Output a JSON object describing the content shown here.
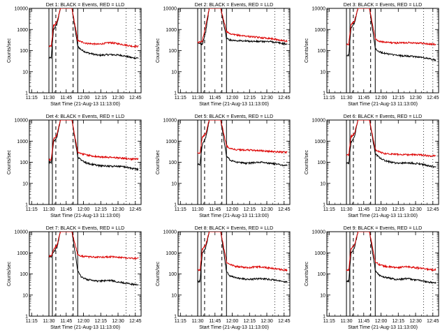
{
  "colors": {
    "events": "#000000",
    "lld": "#dd0000",
    "axes": "#000000",
    "background": "#ffffff"
  },
  "x_tick_labels": [
    "11:15",
    "11:30",
    "11:45",
    "12:00",
    "12:15",
    "12:30",
    "12:45"
  ],
  "y_tick_labels": [
    "1",
    "10",
    "100",
    "1000",
    "10000"
  ],
  "ylabel": "Counts/sec",
  "xlabel": "Start Time (21-Aug-13 11:13:00)",
  "chart_data": [
    {
      "type": "line",
      "title": "Det 1: BLACK = Events, RED = LLD",
      "x_minutes_since_start_time": [
        0,
        17,
        19,
        21,
        24,
        27,
        30,
        37,
        42,
        45,
        50,
        60,
        70,
        80,
        90,
        95
      ],
      "series": [
        {
          "name": "Events",
          "color": "#000000",
          "values": [
            null,
            45,
            45,
            1000,
            1800,
            10000,
            10000,
            10000,
            160,
            110,
            80,
            60,
            65,
            60,
            45,
            45
          ]
        },
        {
          "name": "LLD",
          "color": "#dd0000",
          "values": [
            null,
            160,
            160,
            1500,
            2200,
            10000,
            10000,
            10000,
            300,
            260,
            220,
            200,
            240,
            200,
            160,
            160
          ]
        }
      ],
      "ylim": [
        1,
        10000
      ],
      "yscale": "log",
      "solid_vertical_lines": [
        17,
        20,
        42
      ],
      "dashed_vertical_lines": [
        23,
        38
      ],
      "dotted_vertical_lines": [
        84,
        92
      ]
    },
    {
      "type": "line",
      "title": "Det 2: BLACK = Events, RED = LLD",
      "x_minutes_since_start_time": [
        0,
        17,
        19,
        21,
        24,
        27,
        30,
        37,
        42,
        45,
        50,
        60,
        70,
        80,
        90,
        95
      ],
      "series": [
        {
          "name": "Events",
          "color": "#000000",
          "values": [
            null,
            220,
            220,
            200,
            800,
            10000,
            10000,
            10000,
            380,
            320,
            300,
            280,
            270,
            270,
            220,
            200
          ]
        },
        {
          "name": "LLD",
          "color": "#dd0000",
          "values": [
            null,
            250,
            250,
            280,
            1500,
            10000,
            10000,
            10000,
            800,
            600,
            550,
            480,
            420,
            380,
            300,
            280
          ]
        }
      ],
      "ylim": [
        1,
        10000
      ],
      "yscale": "log",
      "solid_vertical_lines": [
        17,
        20,
        42
      ],
      "dashed_vertical_lines": [
        23,
        38
      ],
      "dotted_vertical_lines": [
        84,
        92
      ]
    },
    {
      "type": "line",
      "title": "Det 3: BLACK = Events, RED = LLD",
      "x_minutes_since_start_time": [
        0,
        17,
        19,
        21,
        24,
        27,
        30,
        37,
        42,
        45,
        50,
        60,
        70,
        80,
        90,
        95
      ],
      "series": [
        {
          "name": "Events",
          "color": "#000000",
          "values": [
            null,
            60,
            60,
            1200,
            2000,
            10000,
            10000,
            10000,
            130,
            90,
            75,
            60,
            55,
            50,
            40,
            35
          ]
        },
        {
          "name": "LLD",
          "color": "#dd0000",
          "values": [
            null,
            200,
            200,
            1800,
            2500,
            10000,
            10000,
            10000,
            350,
            280,
            250,
            230,
            240,
            230,
            200,
            200
          ]
        }
      ],
      "ylim": [
        1,
        10000
      ],
      "yscale": "log",
      "solid_vertical_lines": [
        17,
        20,
        42
      ],
      "dashed_vertical_lines": [
        23,
        38
      ],
      "dotted_vertical_lines": [
        84,
        92
      ]
    },
    {
      "type": "line",
      "title": "Det 4: BLACK = Events, RED = LLD",
      "x_minutes_since_start_time": [
        0,
        17,
        19,
        21,
        24,
        27,
        30,
        37,
        42,
        45,
        50,
        60,
        70,
        80,
        90,
        95
      ],
      "series": [
        {
          "name": "Events",
          "color": "#000000",
          "values": [
            null,
            100,
            100,
            900,
            1600,
            10000,
            10000,
            10000,
            180,
            130,
            90,
            70,
            65,
            65,
            50,
            45
          ]
        },
        {
          "name": "LLD",
          "color": "#dd0000",
          "values": [
            null,
            130,
            130,
            1200,
            2000,
            10000,
            10000,
            10000,
            300,
            260,
            220,
            180,
            170,
            160,
            140,
            140
          ]
        }
      ],
      "ylim": [
        1,
        10000
      ],
      "yscale": "log",
      "solid_vertical_lines": [
        17,
        20,
        42
      ],
      "dashed_vertical_lines": [
        23,
        38
      ],
      "dotted_vertical_lines": [
        84,
        92
      ]
    },
    {
      "type": "line",
      "title": "Det 5: BLACK = Events, RED = LLD",
      "x_minutes_since_start_time": [
        0,
        17,
        19,
        21,
        24,
        27,
        30,
        37,
        42,
        45,
        50,
        60,
        70,
        80,
        90,
        95
      ],
      "series": [
        {
          "name": "Events",
          "color": "#000000",
          "values": [
            null,
            80,
            80,
            700,
            1400,
            10000,
            10000,
            10000,
            200,
            130,
            100,
            90,
            100,
            90,
            75,
            70
          ]
        },
        {
          "name": "LLD",
          "color": "#dd0000",
          "values": [
            null,
            280,
            280,
            1500,
            2300,
            10000,
            10000,
            10000,
            600,
            450,
            400,
            380,
            360,
            330,
            300,
            300
          ]
        }
      ],
      "ylim": [
        1,
        10000
      ],
      "yscale": "log",
      "solid_vertical_lines": [
        17,
        20,
        42
      ],
      "dashed_vertical_lines": [
        23,
        38
      ],
      "dotted_vertical_lines": [
        84,
        92
      ]
    },
    {
      "type": "line",
      "title": "Det 6: BLACK = Events, RED = LLD",
      "x_minutes_since_start_time": [
        0,
        17,
        19,
        21,
        24,
        27,
        30,
        37,
        42,
        45,
        50,
        60,
        70,
        80,
        90,
        95
      ],
      "series": [
        {
          "name": "Events",
          "color": "#000000",
          "values": [
            null,
            90,
            90,
            900,
            1700,
            10000,
            10000,
            10000,
            250,
            180,
            120,
            90,
            95,
            85,
            65,
            60
          ]
        },
        {
          "name": "LLD",
          "color": "#dd0000",
          "values": [
            null,
            220,
            220,
            1600,
            2400,
            10000,
            10000,
            10000,
            400,
            320,
            260,
            240,
            230,
            230,
            200,
            200
          ]
        }
      ],
      "ylim": [
        1,
        10000
      ],
      "yscale": "log",
      "solid_vertical_lines": [
        17,
        20,
        42
      ],
      "dashed_vertical_lines": [
        23,
        38
      ],
      "dotted_vertical_lines": [
        84,
        92
      ]
    },
    {
      "type": "line",
      "title": "Det 7: BLACK = Events, RED = LLD",
      "x_minutes_since_start_time": [
        0,
        17,
        19,
        21,
        24,
        27,
        30,
        37,
        42,
        45,
        50,
        60,
        70,
        80,
        90,
        95
      ],
      "series": [
        {
          "name": "Events",
          "color": "#000000",
          "values": [
            null,
            650,
            650,
            1100,
            1800,
            10000,
            10000,
            10000,
            150,
            70,
            55,
            45,
            50,
            40,
            32,
            30
          ]
        },
        {
          "name": "LLD",
          "color": "#dd0000",
          "values": [
            null,
            700,
            700,
            1500,
            2300,
            10000,
            10000,
            10000,
            800,
            700,
            650,
            620,
            650,
            600,
            550,
            550
          ]
        }
      ],
      "ylim": [
        1,
        10000
      ],
      "yscale": "log",
      "solid_vertical_lines": [
        17,
        20,
        42
      ],
      "dashed_vertical_lines": [
        23,
        38
      ],
      "dotted_vertical_lines": [
        84,
        92
      ]
    },
    {
      "type": "line",
      "title": "Det 8: BLACK = Events, RED = LLD",
      "x_minutes_since_start_time": [
        0,
        17,
        19,
        21,
        24,
        27,
        30,
        37,
        42,
        45,
        50,
        60,
        70,
        80,
        90,
        95
      ],
      "series": [
        {
          "name": "Events",
          "color": "#000000",
          "values": [
            null,
            45,
            45,
            900,
            1700,
            10000,
            10000,
            10000,
            130,
            80,
            65,
            55,
            60,
            55,
            45,
            40
          ]
        },
        {
          "name": "LLD",
          "color": "#dd0000",
          "values": [
            null,
            150,
            150,
            1500,
            2300,
            10000,
            10000,
            10000,
            350,
            280,
            230,
            200,
            220,
            190,
            160,
            150
          ]
        }
      ],
      "ylim": [
        1,
        10000
      ],
      "yscale": "log",
      "solid_vertical_lines": [
        17,
        20,
        42
      ],
      "dashed_vertical_lines": [
        23,
        38
      ],
      "dotted_vertical_lines": [
        84,
        92
      ]
    },
    {
      "type": "line",
      "title": "Det 9: BLACK = Events, RED = LLD",
      "x_minutes_since_start_time": [
        0,
        17,
        19,
        21,
        24,
        27,
        30,
        37,
        42,
        45,
        50,
        60,
        70,
        80,
        90,
        95
      ],
      "series": [
        {
          "name": "Events",
          "color": "#000000",
          "values": [
            null,
            45,
            45,
            1000,
            1800,
            10000,
            10000,
            10000,
            150,
            90,
            70,
            55,
            60,
            50,
            40,
            38
          ]
        },
        {
          "name": "LLD",
          "color": "#dd0000",
          "values": [
            null,
            150,
            150,
            1600,
            2400,
            10000,
            10000,
            10000,
            380,
            290,
            230,
            200,
            220,
            190,
            160,
            160
          ]
        }
      ],
      "ylim": [
        1,
        10000
      ],
      "yscale": "log",
      "solid_vertical_lines": [
        17,
        20,
        42
      ],
      "dashed_vertical_lines": [
        23,
        38
      ],
      "dotted_vertical_lines": [
        84,
        92
      ]
    }
  ]
}
